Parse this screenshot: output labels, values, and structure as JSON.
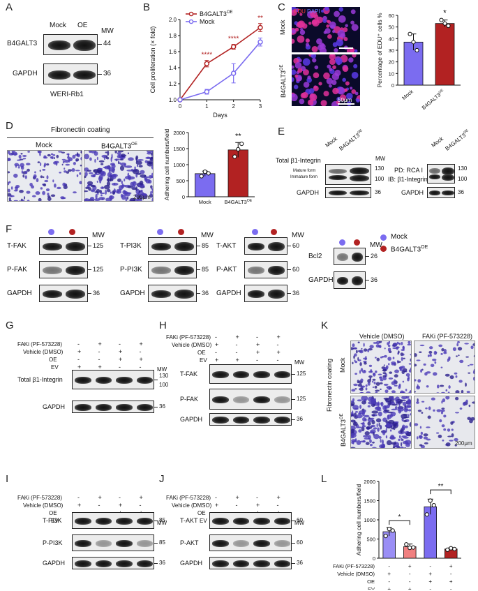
{
  "panels": {
    "A": {
      "label": "A",
      "lanes": [
        "Mock",
        "OE"
      ],
      "mw": "MW",
      "rows": [
        {
          "name": "B4GALT3",
          "mw": "44"
        },
        {
          "name": "GAPDH",
          "mw": "36"
        }
      ],
      "cell_line": "WERI-Rb1"
    },
    "B": {
      "label": "B",
      "sig": [
        "****",
        "****",
        "**"
      ]
    },
    "C": {
      "label": "C",
      "edu": "EDU",
      "dapi": "DAPI",
      "row1": "Mock",
      "row2": "B4GALT3",
      "row2_sup": "OE",
      "scale": "50μm",
      "sig": "*"
    },
    "D": {
      "label": "D",
      "title": "Fibronectin coating",
      "col1": "Mock",
      "col2": "B4GALT3",
      "col2_sup": "OE",
      "scale": "200μm",
      "sig": "**"
    },
    "E": {
      "label": "E",
      "left_title": "Total β1-Integrin",
      "mature": "Mature form",
      "immature": "Immature form",
      "lanes": [
        "Mock",
        "B4GALT3"
      ],
      "lane_sup": "OE",
      "mw": "MW",
      "mw1": "130",
      "mw2": "100",
      "gapdh": "GAPDH",
      "gapdh_mw": "36",
      "pd": "PD: RCA I",
      "ib": "IB: β1-Integrin"
    },
    "F": {
      "label": "F",
      "mw": "MW",
      "groups": [
        {
          "rows": [
            {
              "name": "T-FAK",
              "mw": "125"
            },
            {
              "name": "P-FAK",
              "mw": "125"
            },
            {
              "name": "GAPDH",
              "mw": "36"
            }
          ]
        },
        {
          "rows": [
            {
              "name": "T-PI3K",
              "mw": "85"
            },
            {
              "name": "P-PI3K",
              "mw": "85"
            },
            {
              "name": "GAPDH",
              "mw": "36"
            }
          ]
        },
        {
          "rows": [
            {
              "name": "T-AKT",
              "mw": "60"
            },
            {
              "name": "P-AKT",
              "mw": "60"
            },
            {
              "name": "GAPDH",
              "mw": "36"
            }
          ]
        },
        {
          "rows": [
            {
              "name": "Bcl2",
              "mw": "26"
            },
            {
              "name": "GAPDH",
              "mw": "36"
            }
          ]
        }
      ],
      "legend": [
        {
          "name": "Mock",
          "color": "#7b6cf0"
        },
        {
          "name": "B4GALT3",
          "sup": "OE",
          "color": "#b22222"
        }
      ]
    },
    "G": {
      "label": "G",
      "rows": [
        {
          "name": "Total β1-Integrin",
          "mw": "130",
          "mw2": "100"
        },
        {
          "name": "GAPDH",
          "mw": "36"
        }
      ]
    },
    "H": {
      "label": "H",
      "rows": [
        {
          "name": "T-FAK",
          "mw": "125"
        },
        {
          "name": "P-FAK",
          "mw": "125"
        },
        {
          "name": "GAPDH",
          "mw": "36"
        }
      ]
    },
    "I": {
      "label": "I",
      "rows": [
        {
          "name": "T-PI3K",
          "mw": "85"
        },
        {
          "name": "P-PI3K",
          "mw": "85"
        },
        {
          "name": "GAPDH",
          "mw": "36"
        }
      ]
    },
    "J": {
      "label": "J",
      "rows": [
        {
          "name": "T-AKT",
          "mw": "60"
        },
        {
          "name": "P-AKT",
          "mw": "60"
        },
        {
          "name": "GAPDH",
          "mw": "36"
        }
      ]
    },
    "K": {
      "label": "K",
      "col1": "Vehicle (DMSO)",
      "col2": "FAKi (PF-573228)",
      "side": "Fibronectin coating",
      "row1": "Mock",
      "row2": "B4GALT3",
      "row2_sup": "OE",
      "scale": "200μm"
    },
    "L": {
      "label": "L",
      "sig": [
        "*",
        "**"
      ]
    }
  },
  "treatment_table": {
    "labels": [
      "FAKi (PF-573228)",
      "Vehicle (DMSO)",
      "OE",
      "EV"
    ],
    "signs": [
      [
        "-",
        "+",
        "-",
        "+"
      ],
      [
        "+",
        "-",
        "+",
        "-"
      ],
      [
        "-",
        "-",
        "+",
        "+"
      ],
      [
        "+",
        "+",
        "-",
        "-"
      ]
    ],
    "mw": "MW"
  },
  "chart_data": [
    {
      "type": "line",
      "xlabel": "Days",
      "ylabel": "Cell proliferation (× fold)",
      "x": [
        0,
        1,
        2,
        3
      ],
      "xlim": [
        0,
        3
      ],
      "ylim": [
        1.0,
        2.0
      ],
      "yticks": [
        "1.0",
        "1.2",
        "1.4",
        "1.6",
        "1.8",
        "2.0"
      ],
      "xticks": [
        "0",
        "1",
        "2",
        "3"
      ],
      "legend_position": "top-left",
      "series": [
        {
          "name": "B4GALT3",
          "name_sup": "OE",
          "color": "#b22222",
          "values": [
            1.0,
            1.45,
            1.66,
            1.9
          ],
          "err": [
            0,
            0.04,
            0.03,
            0.05
          ]
        },
        {
          "name": "Mock",
          "color": "#7b6cf0",
          "values": [
            1.0,
            1.1,
            1.33,
            1.72
          ],
          "err": [
            0,
            0.03,
            0.12,
            0.05
          ]
        }
      ]
    },
    {
      "type": "bar",
      "ylabel": "Percentage of EDU⁺ cells %",
      "categories": [
        "Mock",
        "B4GALT3"
      ],
      "category_sup": [
        "",
        "OE"
      ],
      "values": [
        37,
        53
      ],
      "err": [
        7,
        3
      ],
      "points": [
        [
          44,
          37,
          30
        ],
        [
          56,
          53,
          51
        ]
      ],
      "colors": [
        "#7b6cf0",
        "#b22222"
      ],
      "ylim": [
        0,
        60
      ],
      "yticks": [
        "0",
        "10",
        "20",
        "30",
        "40",
        "50",
        "60"
      ]
    },
    {
      "type": "bar",
      "ylabel": "Adhering cell numbers/field",
      "categories": [
        "Mock",
        "B4GALT3"
      ],
      "category_sup": [
        "",
        "OE"
      ],
      "values": [
        720,
        1460
      ],
      "err": [
        80,
        230
      ],
      "points": [
        [
          640,
          780,
          730
        ],
        [
          1250,
          1480,
          1650
        ]
      ],
      "colors": [
        "#7b6cf0",
        "#b22222"
      ],
      "ylim": [
        0,
        2000
      ],
      "yticks": [
        "0",
        "500",
        "1000",
        "1500",
        "2000"
      ]
    },
    {
      "type": "bar",
      "ylabel": "Adhering cell numbers/field",
      "values": [
        690,
        300,
        1340,
        240
      ],
      "err": [
        110,
        70,
        200,
        30
      ],
      "points": [
        [
          580,
          760,
          720
        ],
        [
          360,
          270,
          280
        ],
        [
          1140,
          1500,
          1380
        ],
        [
          220,
          260,
          240
        ]
      ],
      "colors": [
        "#9a8ef5",
        "#f08080",
        "#7b6cf0",
        "#b22222"
      ],
      "ylim": [
        0,
        2000
      ],
      "yticks": [
        "0",
        "500",
        "1000",
        "1500",
        "2000"
      ],
      "treatments": {
        "labels": [
          "FAKi (PF-573228)",
          "Vehicle (DMSO)",
          "OE",
          "EV"
        ],
        "signs": [
          [
            "-",
            "+",
            "-",
            "+"
          ],
          [
            "+",
            "-",
            "+",
            "-"
          ],
          [
            "-",
            "-",
            "+",
            "+"
          ],
          [
            "+",
            "+",
            "-",
            "-"
          ]
        ]
      }
    }
  ]
}
